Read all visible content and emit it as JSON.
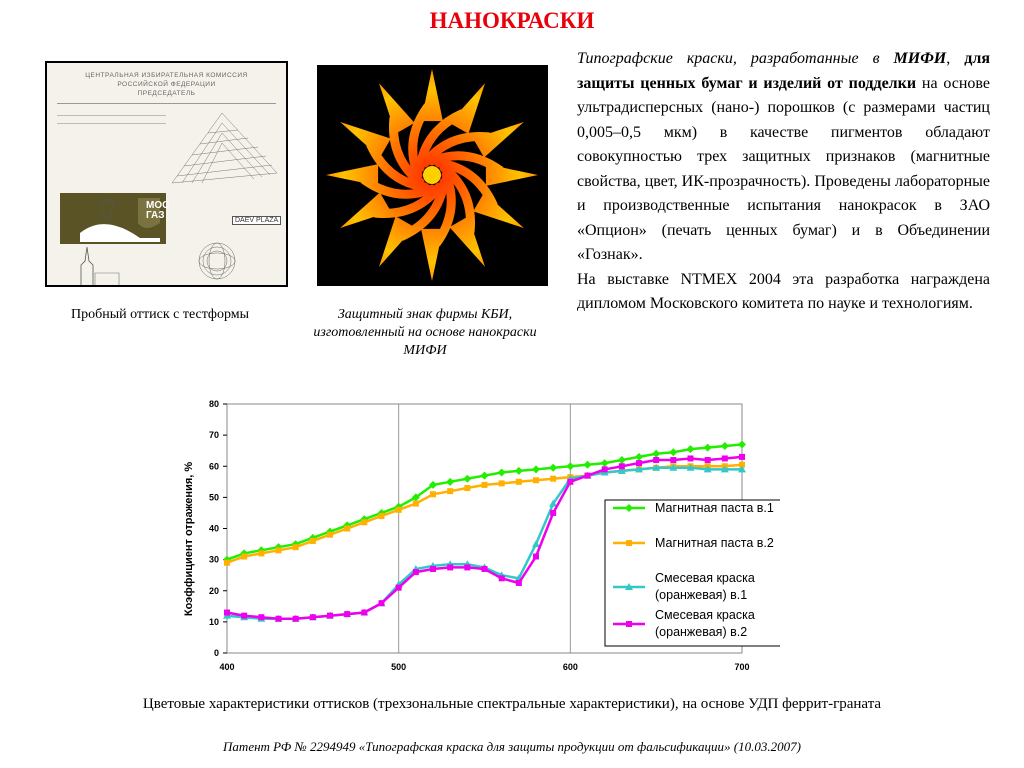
{
  "title": "НАНОКРАСКИ",
  "test_print": {
    "header_lines": [
      "ЦЕНТРАЛЬНАЯ ИЗБИРАТЕЛЬНАЯ КОМИССИЯ",
      "РОССИЙСКОЙ ФЕДЕРАЦИИ",
      "ПРЕДСЕДАТЕЛЬ"
    ],
    "logo_text": "МОС ГАЗ",
    "sign_text": "DAEV PLAZA"
  },
  "captions": {
    "left": "Пробный оттиск с тестформы",
    "middle": "Защитный знак фирмы КБИ, изготовленный на основе нанокраски МИФИ"
  },
  "paragraph": {
    "p1_part1": "Типографские краски, разработанные в ",
    "p1_mifi": "МИФИ",
    "p1_comma": ", ",
    "p1_bold": "для защиты ценных бумаг и изделий от подделки",
    "p1_rest": " на основе ультрадисперсных (нано-) порошков  (с размерами частиц 0,005–0,5 мкм) в качестве пигментов обладают совокупностью трех защитных признаков (магнитные свойства, цвет, ИК-прозрачность). Проведены лабораторные и производственные испытания нанокрасок в ЗАО «Опцион» (печать ценных бумаг) и в Объединении «Гознак».",
    "p2": "На выставке NTMEX 2004 эта разработка награждена дипломом Московского комитета по науке и технологиям."
  },
  "chart_caption": "Цветовые характеристики оттисков (трехзональные спектральные характеристики), на основе УДП феррит-граната",
  "patent": "Патент РФ № 2294949 «Типографская краска для защиты продукции от фальсификации» (10.03.2007)",
  "chart_data": {
    "type": "line",
    "xlabel": "",
    "ylabel": "Коэффициент отражения, %",
    "xlim": [
      400,
      700
    ],
    "ylim": [
      0,
      80
    ],
    "xticks": [
      400,
      500,
      600,
      700
    ],
    "yticks": [
      0,
      10,
      20,
      30,
      40,
      50,
      60,
      70,
      80
    ],
    "grid": "vertical",
    "legend_position": "bottom-right",
    "x": [
      400,
      410,
      420,
      430,
      440,
      450,
      460,
      470,
      480,
      490,
      500,
      510,
      520,
      530,
      540,
      550,
      560,
      570,
      580,
      590,
      600,
      610,
      620,
      630,
      640,
      650,
      660,
      670,
      680,
      690,
      700
    ],
    "series": [
      {
        "name": "Магнитная паста  в.1",
        "color": "#22ee00",
        "values": [
          30,
          32,
          33,
          34,
          35,
          37,
          39,
          41,
          43,
          45,
          47,
          50,
          54,
          55,
          56,
          57,
          58,
          58.5,
          59,
          59.5,
          60,
          60.5,
          61,
          62,
          63,
          64,
          64.5,
          65.5,
          66,
          66.5,
          67
        ]
      },
      {
        "name": "Магнитная паста  в.2",
        "color": "#ffb000",
        "values": [
          29,
          31,
          32,
          33,
          34,
          36,
          38,
          40,
          42,
          44,
          46,
          48,
          51,
          52,
          53,
          54,
          54.5,
          55,
          55.5,
          56,
          56.5,
          57,
          58,
          58.5,
          59,
          59.5,
          60,
          60,
          60,
          60,
          60.5
        ]
      },
      {
        "name": "Смесевая краска (оранжевая) в.1",
        "color": "#33c8c8",
        "values": [
          12,
          11.5,
          11,
          11,
          11,
          11.5,
          12,
          12.5,
          13,
          16,
          22,
          27,
          28,
          28.5,
          28.5,
          27.5,
          25,
          24,
          35,
          48,
          56,
          57,
          58,
          58.5,
          59,
          59.5,
          59.5,
          59.5,
          59,
          59,
          59
        ]
      },
      {
        "name": "Смесевая краска (оранжевая)  в.2",
        "color": "#ee00ee",
        "values": [
          13,
          12,
          11.5,
          11,
          11,
          11.5,
          12,
          12.5,
          13,
          16,
          21,
          26,
          27,
          27.5,
          27.5,
          27,
          24,
          22.5,
          31,
          45,
          55,
          57,
          59,
          60,
          61,
          62,
          62,
          62.5,
          62,
          62.5,
          63
        ]
      }
    ]
  },
  "legend_lines": [
    [
      "Магнитная паста  в.1"
    ],
    [
      "Магнитная паста  в.2"
    ],
    [
      "Смесевая краска",
      "(оранжевая) в.1"
    ],
    [
      "Смесевая краска",
      "(оранжевая)  в.2"
    ]
  ]
}
